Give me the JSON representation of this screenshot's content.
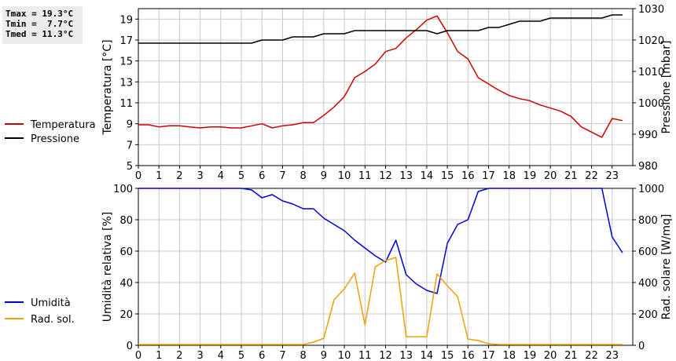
{
  "stats": {
    "tmax": "Tmax = 19.3°C",
    "tmin": "Tmin =  7.7°C",
    "tmed": "Tmed = 11.3°C"
  },
  "colors": {
    "temperature": "#cc0000",
    "pressure": "#000000",
    "humidity": "#0000cc",
    "radiation": "#f0a000",
    "grid": "#c8c8c8"
  },
  "chart_data": [
    {
      "type": "line",
      "xlabel": "",
      "ylabel": "Temperatura [°C]",
      "ylabel_right": "Pressione [mbar]",
      "xlim": [
        0,
        24
      ],
      "ylim": [
        5,
        20
      ],
      "ylim_right": [
        980,
        1030
      ],
      "x_ticks": [
        "0",
        "1",
        "2",
        "3",
        "4",
        "5",
        "6",
        "7",
        "8",
        "9",
        "10",
        "11",
        "12",
        "13",
        "14",
        "15",
        "16",
        "17",
        "18",
        "19",
        "20",
        "21",
        "22",
        "23"
      ],
      "y_ticks": [
        "5",
        "7",
        "9",
        "11",
        "13",
        "15",
        "17",
        "19"
      ],
      "y_ticks_right": [
        "980",
        "990",
        "1000",
        "1010",
        "1020",
        "1030"
      ],
      "grid": true,
      "legend": "left",
      "series": [
        {
          "name": "Temperatura",
          "axis": "left",
          "x": [
            0,
            0.5,
            1,
            1.5,
            2,
            2.5,
            3,
            3.5,
            4,
            4.5,
            5,
            5.5,
            6,
            6.5,
            7,
            7.5,
            8,
            8.5,
            9,
            9.5,
            10,
            10.5,
            11,
            11.5,
            12,
            12.5,
            13,
            13.5,
            14,
            14.5,
            15,
            15.5,
            16,
            16.5,
            17,
            17.5,
            18,
            18.5,
            19,
            19.5,
            20,
            20.5,
            21,
            21.5,
            22,
            22.5,
            23,
            23.5
          ],
          "values": [
            8.9,
            8.9,
            8.7,
            8.8,
            8.8,
            8.7,
            8.6,
            8.7,
            8.7,
            8.6,
            8.6,
            8.8,
            9.0,
            8.6,
            8.8,
            8.9,
            9.1,
            9.1,
            9.8,
            10.6,
            11.6,
            13.4,
            14.0,
            14.7,
            15.9,
            16.2,
            17.2,
            18.0,
            18.9,
            19.3,
            17.7,
            15.9,
            15.2,
            13.4,
            12.8,
            12.2,
            11.7,
            11.4,
            11.2,
            10.8,
            10.5,
            10.2,
            9.7,
            8.7,
            8.2,
            7.7,
            9.5,
            9.3
          ]
        },
        {
          "name": "Pressione",
          "axis": "right",
          "x": [
            0,
            0.5,
            1,
            1.5,
            2,
            2.5,
            3,
            3.5,
            4,
            4.5,
            5,
            5.5,
            6,
            6.5,
            7,
            7.5,
            8,
            8.5,
            9,
            9.5,
            10,
            10.5,
            11,
            11.5,
            12,
            12.5,
            13,
            13.5,
            14,
            14.5,
            15,
            15.5,
            16,
            16.5,
            17,
            17.5,
            18,
            18.5,
            19,
            19.5,
            20,
            20.5,
            21,
            21.5,
            22,
            22.5,
            23,
            23.5
          ],
          "values": [
            1019,
            1019,
            1019,
            1019,
            1019,
            1019,
            1019,
            1019,
            1019,
            1019,
            1019,
            1019,
            1020,
            1020,
            1020,
            1021,
            1021,
            1021,
            1022,
            1022,
            1022,
            1023,
            1023,
            1023,
            1023,
            1023,
            1023,
            1023,
            1023,
            1022,
            1023,
            1023,
            1023,
            1023,
            1024,
            1024,
            1025,
            1026,
            1026,
            1026,
            1027,
            1027,
            1027,
            1027,
            1027,
            1027,
            1028,
            1028
          ]
        }
      ]
    },
    {
      "type": "line",
      "xlabel": "",
      "ylabel": "Umidità relativa [%]",
      "ylabel_right": "Rad. solare [W/mq]",
      "xlim": [
        0,
        24
      ],
      "ylim": [
        0,
        100
      ],
      "ylim_right": [
        0,
        1000
      ],
      "x_ticks": [
        "0",
        "1",
        "2",
        "3",
        "4",
        "5",
        "6",
        "7",
        "8",
        "9",
        "10",
        "11",
        "12",
        "13",
        "14",
        "15",
        "16",
        "17",
        "18",
        "19",
        "20",
        "21",
        "22",
        "23"
      ],
      "y_ticks": [
        "0",
        "20",
        "40",
        "60",
        "80",
        "100"
      ],
      "y_ticks_right": [
        "0",
        "200",
        "400",
        "600",
        "800",
        "1000"
      ],
      "grid": true,
      "legend": "left",
      "series": [
        {
          "name": "Umidità",
          "axis": "left",
          "x": [
            0,
            0.5,
            1,
            1.5,
            2,
            2.5,
            3,
            3.5,
            4,
            4.5,
            5,
            5.5,
            6,
            6.5,
            7,
            7.5,
            8,
            8.5,
            9,
            9.5,
            10,
            10.5,
            11,
            11.5,
            12,
            12.5,
            13,
            13.5,
            14,
            14.5,
            15,
            15.5,
            16,
            16.5,
            17,
            17.5,
            18,
            18.5,
            19,
            19.5,
            20,
            20.5,
            21,
            21.5,
            22,
            22.5,
            23,
            23.5
          ],
          "values": [
            100,
            100,
            100,
            100,
            100,
            100,
            100,
            100,
            100,
            100,
            100,
            99,
            94,
            96,
            92,
            90,
            87,
            87,
            81,
            77,
            73,
            67,
            62,
            57,
            53,
            67,
            45,
            39,
            35,
            33,
            65,
            77,
            80,
            98,
            100,
            100,
            100,
            100,
            100,
            100,
            100,
            100,
            100,
            100,
            100,
            100,
            69,
            59
          ]
        },
        {
          "name": "Rad. sol.",
          "axis": "right",
          "x": [
            0,
            0.5,
            1,
            1.5,
            2,
            2.5,
            3,
            3.5,
            4,
            4.5,
            5,
            5.5,
            6,
            6.5,
            7,
            7.5,
            8,
            8.5,
            9,
            9.5,
            10,
            10.5,
            11,
            11.5,
            12,
            12.5,
            13,
            13.5,
            14,
            14.5,
            15,
            15.5,
            16,
            16.5,
            17,
            17.5,
            18,
            18.5,
            19,
            19.5,
            20,
            20.5,
            21,
            21.5,
            22,
            22.5,
            23,
            23.5
          ],
          "values": [
            5,
            5,
            5,
            5,
            5,
            5,
            5,
            5,
            5,
            5,
            5,
            5,
            5,
            5,
            5,
            5,
            5,
            20,
            45,
            290,
            360,
            460,
            130,
            500,
            540,
            560,
            55,
            55,
            55,
            455,
            380,
            310,
            40,
            30,
            10,
            5,
            5,
            5,
            5,
            5,
            5,
            5,
            5,
            5,
            5,
            5,
            5,
            5
          ]
        }
      ]
    }
  ]
}
